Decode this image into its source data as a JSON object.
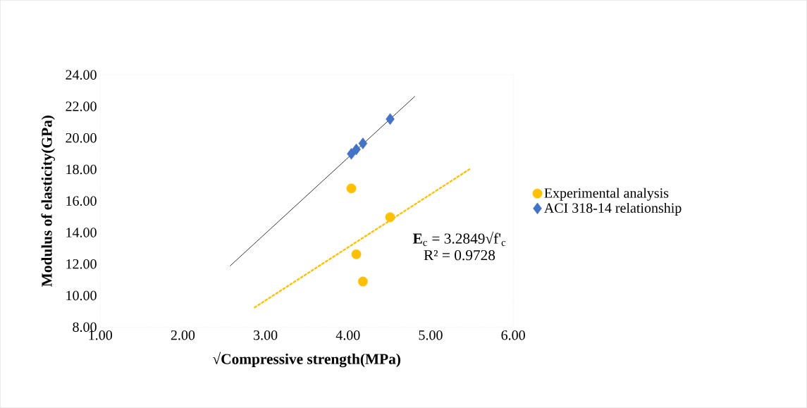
{
  "chart_data": {
    "type": "scatter",
    "xlabel": "√Compressive strength(MPa)",
    "ylabel": "Modulus of elasticity(GPa)",
    "x": [
      4.04,
      4.51,
      4.1,
      4.18
    ],
    "series": [
      {
        "name": "Experimental analysis",
        "color": "#ffc000",
        "marker": "circle",
        "values": [
          16.8,
          14.97,
          12.62,
          10.89
        ]
      },
      {
        "name": "ACI 318-14 relationship",
        "color": "#4472c4",
        "marker": "diamond",
        "x": [
          4.04,
          4.1,
          4.18,
          4.51
        ],
        "values": [
          18.99,
          19.27,
          19.65,
          21.2
        ]
      },
      {
        "type": "line",
        "color": "#000000",
        "line_style": "solid",
        "marker": "none",
        "x": [
          2.57,
          4.81
        ],
        "values": [
          11.87,
          22.64
        ]
      },
      {
        "type": "line",
        "color": "#ffc000",
        "line_style": "dotted",
        "marker": "none",
        "x": [
          2.87,
          5.47
        ],
        "values": [
          9.25,
          18.01
        ]
      }
    ],
    "xlim": [
      1,
      6
    ],
    "ylim": [
      8,
      24
    ],
    "xticks": [
      {
        "value": 1,
        "label": "1.00"
      },
      {
        "value": 2,
        "label": "2.00"
      },
      {
        "value": 3,
        "label": "3.00"
      },
      {
        "value": 4,
        "label": "4.00"
      },
      {
        "value": 5,
        "label": "5.00"
      },
      {
        "value": 6,
        "label": "6.00"
      }
    ],
    "yticks": [
      {
        "value": 8,
        "label": "8.00"
      },
      {
        "value": 10,
        "label": "10.00"
      },
      {
        "value": 12,
        "label": "12.00"
      },
      {
        "value": 14,
        "label": "14.00"
      },
      {
        "value": 16,
        "label": "16.00"
      },
      {
        "value": 18,
        "label": "18.00"
      },
      {
        "value": 20,
        "label": "20.00"
      },
      {
        "value": 22,
        "label": "22.00"
      },
      {
        "value": 24,
        "label": "24.00"
      }
    ],
    "annotations": [
      "**E**$_{c}$ = 3.2849√f'$_{c}$",
      "R² = 0.9728"
    ],
    "grid": false,
    "legend": "right"
  }
}
